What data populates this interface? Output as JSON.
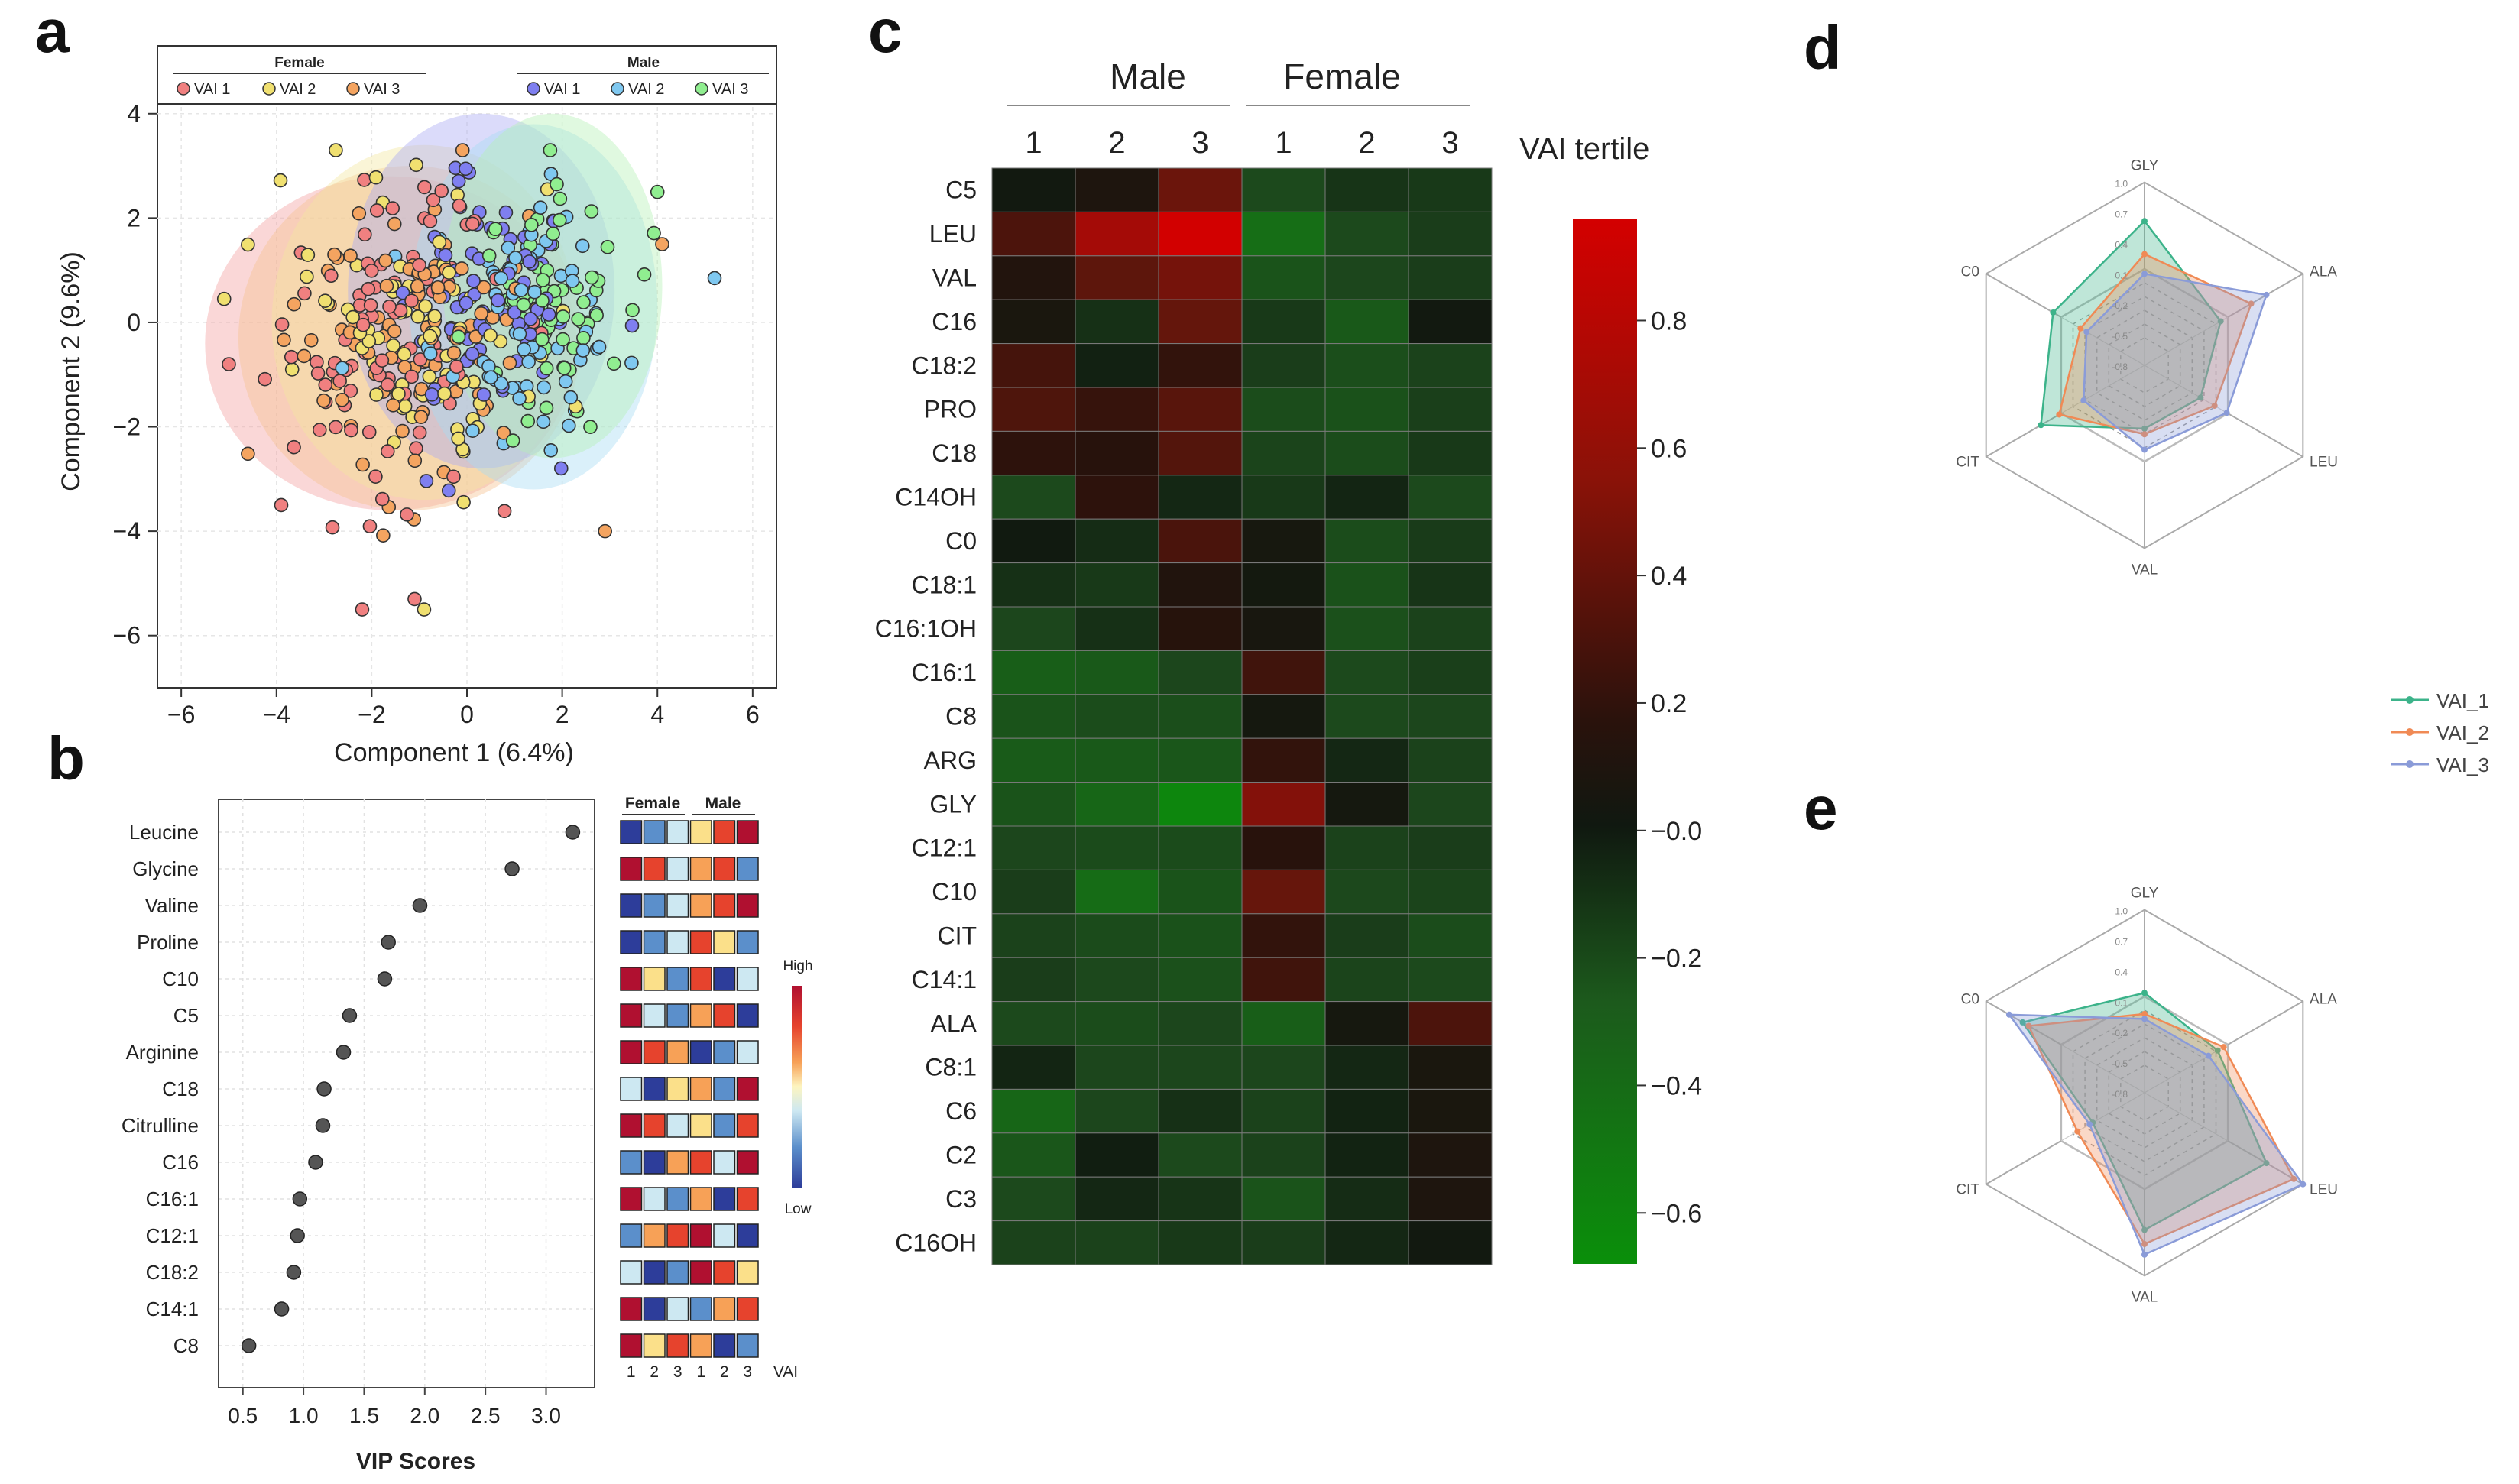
{
  "panels": {
    "a": {
      "letter": "a",
      "xlabel": "Component 1 (6.4%)",
      "ylabel": "Component 2 (9.6%)",
      "xlim": [
        -6.5,
        6.5
      ],
      "ylim": [
        -7,
        5.3
      ],
      "xticks": [
        -6,
        -4,
        -2,
        0,
        2,
        4,
        6
      ],
      "yticks": [
        -6,
        -4,
        -2,
        0,
        2,
        4
      ],
      "legend_female_title": "Female",
      "legend_male_title": "Male",
      "legend_items": [
        {
          "label": "VAI 1",
          "color": "#f08080",
          "group": "female"
        },
        {
          "label": "VAI 2",
          "color": "#f0e070",
          "group": "female"
        },
        {
          "label": "VAI 3",
          "color": "#f4a460",
          "group": "female"
        },
        {
          "label": "VAI 1",
          "color": "#7f7ff0",
          "group": "male"
        },
        {
          "label": "VAI 2",
          "color": "#7fc8f0",
          "group": "male"
        },
        {
          "label": "VAI 3",
          "color": "#90ee90",
          "group": "male"
        }
      ],
      "ellipses": [
        {
          "group": "Female VAI 1",
          "cx": -1.6,
          "cy": -0.4,
          "rx": 3.9,
          "ry": 3.2,
          "color": "#f4a0a0"
        },
        {
          "group": "Female VAI 3",
          "cx": -1.2,
          "cy": -0.3,
          "rx": 3.6,
          "ry": 3.3,
          "color": "#f6c090"
        },
        {
          "group": "Female VAI 2",
          "cx": -0.9,
          "cy": 0.0,
          "rx": 3.2,
          "ry": 3.4,
          "color": "#f4e6a0"
        },
        {
          "group": "Male VAI 1",
          "cx": 0.3,
          "cy": 0.6,
          "rx": 2.8,
          "ry": 3.4,
          "color": "#a9a9f4"
        },
        {
          "group": "Male VAI 2",
          "cx": 1.4,
          "cy": 0.3,
          "rx": 2.6,
          "ry": 3.5,
          "color": "#a6dcf4"
        },
        {
          "group": "Male VAI 3",
          "cx": 1.8,
          "cy": 0.7,
          "rx": 2.3,
          "ry": 3.3,
          "color": "#b4f0b4"
        }
      ],
      "outliers": [
        {
          "x": -5.1,
          "y": 0.45,
          "color": "#f0e070"
        },
        {
          "x": -5.0,
          "y": -0.8,
          "color": "#f08080"
        },
        {
          "x": -3.9,
          "y": -3.5,
          "color": "#f08080"
        },
        {
          "x": -2.2,
          "y": -5.5,
          "color": "#f08080"
        },
        {
          "x": -1.1,
          "y": -5.3,
          "color": "#f08080"
        },
        {
          "x": -0.9,
          "y": -5.5,
          "color": "#f0e070"
        },
        {
          "x": 4.0,
          "y": 2.5,
          "color": "#90ee90"
        },
        {
          "x": 4.1,
          "y": 1.5,
          "color": "#f4a460"
        },
        {
          "x": 5.2,
          "y": 0.85,
          "color": "#7fc8f0"
        },
        {
          "x": 2.9,
          "y": -4.0,
          "color": "#f4a460"
        }
      ]
    },
    "b": {
      "letter": "b",
      "xlabel": "VIP Scores",
      "xlim": [
        0.3,
        3.4
      ],
      "xticks": [
        "0.5",
        "1.0",
        "1.5",
        "2.0",
        "2.5",
        "3.0"
      ],
      "features": [
        "Leucine",
        "Glycine",
        "Valine",
        "Proline",
        "C10",
        "C5",
        "Arginine",
        "C18",
        "Citrulline",
        "C16",
        "C16:1",
        "C12:1",
        "C18:2",
        "C14:1",
        "C8"
      ],
      "vip": [
        3.22,
        2.72,
        1.96,
        1.7,
        1.67,
        1.38,
        1.33,
        1.17,
        1.16,
        1.1,
        0.97,
        0.95,
        0.92,
        0.82,
        0.55
      ],
      "heat_levels": [
        [
          1,
          2,
          3,
          4,
          6,
          7
        ],
        [
          7,
          6,
          3,
          5,
          6,
          2
        ],
        [
          1,
          2,
          3,
          5,
          6,
          7
        ],
        [
          1,
          2,
          3,
          6,
          4,
          2
        ],
        [
          7,
          4,
          2,
          6,
          1,
          3
        ],
        [
          7,
          3,
          2,
          5,
          6,
          1
        ],
        [
          7,
          6,
          5,
          1,
          2,
          3
        ],
        [
          3,
          1,
          4,
          5,
          2,
          7
        ],
        [
          7,
          6,
          3,
          4,
          2,
          6
        ],
        [
          2,
          1,
          5,
          6,
          3,
          7
        ],
        [
          7,
          3,
          2,
          5,
          1,
          6
        ],
        [
          2,
          5,
          6,
          7,
          3,
          1
        ],
        [
          3,
          1,
          2,
          7,
          6,
          4
        ],
        [
          7,
          1,
          3,
          2,
          5,
          6
        ],
        [
          7,
          4,
          6,
          5,
          1,
          2
        ]
      ],
      "heat_palette": [
        "#2d3d9a",
        "#5b8fcb",
        "#cde8f2",
        "#fbe08a",
        "#f7a157",
        "#e6432d",
        "#b01030"
      ],
      "female_label": "Female",
      "male_label": "Male",
      "col_labels": [
        "1",
        "2",
        "3",
        "1",
        "2",
        "3"
      ],
      "vai_label": "VAI",
      "scale_high": "High",
      "scale_low": "Low"
    },
    "c": {
      "letter": "c",
      "male_label": "Male",
      "female_label": "Female",
      "tertile_label": "VAI tertile",
      "cols": [
        "1",
        "2",
        "3",
        "1",
        "2",
        "3"
      ],
      "rows": [
        "C5",
        "LEU",
        "VAL",
        "C16",
        "C18:2",
        "PRO",
        "C18",
        "C14OH",
        "C0",
        "C18:1",
        "C16:1OH",
        "C16:1",
        "C8",
        "ARG",
        "GLY",
        "C12:1",
        "C10",
        "CIT",
        "C14:1",
        "ALA",
        "C8:1",
        "C6",
        "C2",
        "C3",
        "C16OH"
      ],
      "values": [
        [
          0.02,
          0.12,
          0.48,
          -0.22,
          -0.12,
          -0.14
        ],
        [
          0.35,
          0.72,
          0.95,
          -0.45,
          -0.22,
          -0.16
        ],
        [
          0.15,
          0.42,
          0.52,
          -0.28,
          -0.2,
          -0.16
        ],
        [
          0.08,
          -0.1,
          0.45,
          -0.14,
          -0.32,
          0.02
        ],
        [
          0.32,
          -0.03,
          0.24,
          -0.16,
          -0.25,
          -0.18
        ],
        [
          0.36,
          0.26,
          0.4,
          -0.24,
          -0.27,
          -0.17
        ],
        [
          0.22,
          0.19,
          0.38,
          -0.19,
          -0.24,
          -0.14
        ],
        [
          -0.22,
          0.22,
          -0.06,
          -0.14,
          -0.05,
          -0.22
        ],
        [
          0.01,
          -0.08,
          0.34,
          0.06,
          -0.24,
          -0.15
        ],
        [
          -0.1,
          -0.14,
          0.14,
          0.03,
          -0.27,
          -0.12
        ],
        [
          -0.2,
          -0.1,
          0.18,
          0.07,
          -0.26,
          -0.18
        ],
        [
          -0.35,
          -0.32,
          -0.2,
          0.3,
          -0.22,
          -0.17
        ],
        [
          -0.28,
          -0.24,
          -0.25,
          0.04,
          -0.22,
          -0.2
        ],
        [
          -0.33,
          -0.32,
          -0.3,
          0.24,
          -0.06,
          -0.18
        ],
        [
          -0.28,
          -0.4,
          -0.62,
          0.58,
          0.04,
          -0.2
        ],
        [
          -0.2,
          -0.23,
          -0.23,
          0.2,
          -0.18,
          -0.16
        ],
        [
          -0.16,
          -0.44,
          -0.28,
          0.46,
          -0.21,
          -0.19
        ],
        [
          -0.18,
          -0.23,
          -0.27,
          0.24,
          -0.16,
          -0.24
        ],
        [
          -0.16,
          -0.21,
          -0.26,
          0.3,
          -0.19,
          -0.22
        ],
        [
          -0.22,
          -0.24,
          -0.2,
          -0.35,
          0.05,
          0.35
        ],
        [
          -0.05,
          -0.2,
          -0.2,
          -0.2,
          -0.06,
          0.08
        ],
        [
          -0.4,
          -0.2,
          -0.1,
          -0.18,
          -0.04,
          0.08
        ],
        [
          -0.3,
          -0.02,
          -0.22,
          -0.18,
          -0.04,
          0.12
        ],
        [
          -0.22,
          -0.06,
          -0.12,
          -0.28,
          -0.08,
          0.12
        ],
        [
          -0.18,
          -0.18,
          -0.14,
          -0.16,
          -0.06,
          0.02
        ]
      ],
      "colorbar_ticks": [
        "0.8",
        "0.6",
        "0.4",
        "0.2",
        "−0.0",
        "−0.2",
        "−0.4",
        "−0.6"
      ],
      "colorbar_values": [
        0.8,
        0.6,
        0.4,
        0.2,
        0.0,
        -0.2,
        -0.4,
        -0.6
      ],
      "colorbar_range": [
        -0.68,
        0.96
      ]
    },
    "d": {
      "letter": "d",
      "axes": [
        "GLY",
        "ALA",
        "LEU",
        "VAL",
        "CIT",
        "C0"
      ],
      "ring_labels": [
        "-0.8",
        "-0.5",
        "-0.2",
        "0.1",
        "0.4",
        "0.7",
        "1.0"
      ],
      "ring_fracs": [
        0.286,
        0.428,
        0.571,
        0.714,
        0.857,
        1.0
      ],
      "series": [
        {
          "name": "VAI_1",
          "color": "#3cb38a",
          "values": [
            0.45,
            -0.35,
            -0.68,
            -0.7,
            0.1,
            -0.1
          ]
        },
        {
          "name": "VAI_2",
          "color": "#f08a55",
          "values": [
            -0.02,
            0.15,
            -0.45,
            -0.62,
            -0.2,
            -0.55
          ]
        },
        {
          "name": "VAI_3",
          "color": "#8a9bd8",
          "values": [
            -0.3,
            0.4,
            -0.25,
            -0.4,
            -0.6,
            -0.65
          ]
        }
      ]
    },
    "e": {
      "letter": "e",
      "axes": [
        "GLY",
        "ALA",
        "LEU",
        "VAL",
        "CIT",
        "C0"
      ],
      "ring_labels": [
        "-0.8",
        "-0.5",
        "-0.2",
        "0.1",
        "0.4",
        "0.7",
        "1.0"
      ],
      "ring_fracs": [
        0.286,
        0.428,
        0.571,
        0.714,
        0.857,
        1.0
      ],
      "series": [
        {
          "name": "VAI_1",
          "color": "#3cb38a",
          "values": [
            -0.18,
            -0.4,
            0.4,
            0.35,
            -0.75,
            0.4
          ]
        },
        {
          "name": "VAI_2",
          "color": "#f08a55",
          "values": [
            -0.48,
            -0.3,
            0.85,
            0.55,
            -0.5,
            0.3
          ]
        },
        {
          "name": "VAI_3",
          "color": "#8a9bd8",
          "values": [
            -0.55,
            -0.55,
            1.0,
            0.7,
            -0.7,
            0.62
          ]
        }
      ]
    }
  },
  "shared_legend": [
    "VAI_1",
    "VAI_2",
    "VAI_3"
  ],
  "chart_data": [
    {
      "type": "scatter",
      "title": "",
      "xlabel": "Component 1 (6.4%)",
      "ylabel": "Component 2 (9.6%)",
      "xlim": [
        -6.5,
        6.5
      ],
      "ylim": [
        -7,
        5.3
      ],
      "series": [
        {
          "name": "Female VAI 1"
        },
        {
          "name": "Female VAI 2"
        },
        {
          "name": "Female VAI 3"
        },
        {
          "name": "Male VAI 1"
        },
        {
          "name": "Male VAI 2"
        },
        {
          "name": "Male VAI 3"
        }
      ]
    },
    {
      "type": "scatter",
      "title": "",
      "xlabel": "VIP Scores",
      "categories": [
        "Leucine",
        "Glycine",
        "Valine",
        "Proline",
        "C10",
        "C5",
        "Arginine",
        "C18",
        "Citrulline",
        "C16",
        "C16:1",
        "C12:1",
        "C18:2",
        "C14:1",
        "C8"
      ],
      "values": [
        3.22,
        2.72,
        1.96,
        1.7,
        1.67,
        1.38,
        1.33,
        1.17,
        1.16,
        1.1,
        0.97,
        0.95,
        0.92,
        0.82,
        0.55
      ]
    },
    {
      "type": "heatmap",
      "title": "",
      "xlabel": "VAI tertile"
    },
    {
      "type": "radar",
      "title": "",
      "categories": [
        "GLY",
        "ALA",
        "LEU",
        "VAL",
        "CIT",
        "C0"
      ]
    },
    {
      "type": "radar",
      "title": "",
      "categories": [
        "GLY",
        "ALA",
        "LEU",
        "VAL",
        "CIT",
        "C0"
      ]
    }
  ]
}
